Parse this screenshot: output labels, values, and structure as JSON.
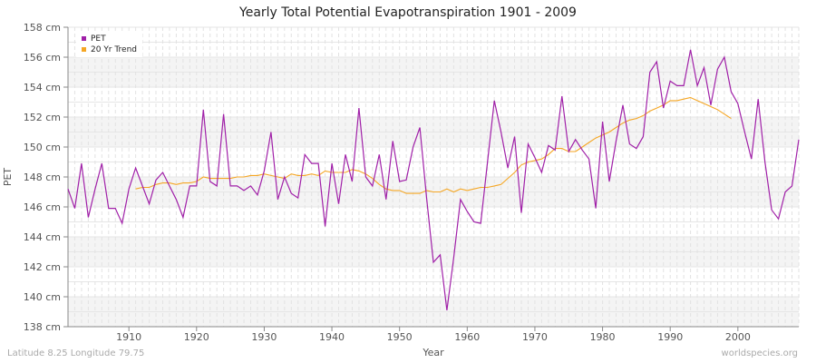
{
  "chart_data": {
    "type": "line",
    "title": "Yearly Total Potential Evapotranspiration 1901 - 2009",
    "xlabel": "Year",
    "ylabel": "PET",
    "xlim": [
      1901,
      2009
    ],
    "ylim": [
      138,
      158
    ],
    "y_unit": "cm",
    "x_ticks": [
      1910,
      1920,
      1930,
      1940,
      1950,
      1960,
      1970,
      1980,
      1990,
      2000
    ],
    "y_ticks": [
      138,
      140,
      142,
      144,
      146,
      148,
      150,
      152,
      154,
      156,
      158
    ],
    "y_tick_labels": [
      "138 cm",
      "140 cm",
      "142 cm",
      "144 cm",
      "146 cm",
      "148 cm",
      "150 cm",
      "152 cm",
      "154 cm",
      "156 cm",
      "158 cm"
    ],
    "grid": true,
    "legend_position": "top-left",
    "series": [
      {
        "name": "PET",
        "color": "#a020a8",
        "x_start": 1901,
        "values": [
          147.2,
          145.9,
          148.9,
          145.3,
          147.2,
          148.9,
          145.9,
          145.9,
          144.9,
          147.2,
          148.6,
          147.4,
          146.2,
          147.8,
          148.3,
          147.4,
          146.5,
          145.3,
          147.4,
          147.4,
          152.5,
          147.7,
          147.4,
          152.2,
          147.4,
          147.4,
          147.1,
          147.4,
          146.8,
          148.4,
          151.0,
          146.5,
          148.0,
          146.9,
          146.6,
          149.5,
          148.9,
          148.9,
          144.7,
          148.9,
          146.2,
          149.5,
          147.7,
          152.6,
          148.0,
          147.4,
          149.5,
          146.5,
          150.4,
          147.7,
          147.8,
          150.0,
          151.3,
          146.6,
          142.3,
          142.8,
          139.1,
          142.6,
          146.5,
          145.7,
          145.0,
          144.9,
          149.0,
          153.1,
          151.0,
          148.6,
          150.7,
          145.6,
          150.2,
          149.3,
          148.3,
          150.1,
          149.8,
          153.4,
          149.7,
          150.5,
          149.8,
          149.2,
          145.9,
          151.7,
          147.7,
          150.4,
          152.8,
          150.2,
          149.9,
          150.7,
          155.0,
          155.7,
          152.6,
          154.4,
          154.1,
          154.1,
          156.5,
          154.1,
          155.3,
          152.8,
          155.2,
          156.0,
          153.7,
          152.9,
          151.0,
          149.2,
          153.2,
          149.0,
          145.8,
          145.2,
          147.0,
          147.4,
          150.5
        ]
      },
      {
        "name": "20 Yr Trend",
        "color": "#f5a623",
        "x_start": 1911,
        "values": [
          147.2,
          147.3,
          147.3,
          147.5,
          147.6,
          147.6,
          147.5,
          147.6,
          147.6,
          147.7,
          148.0,
          147.9,
          147.9,
          147.9,
          147.9,
          148.0,
          148.0,
          148.1,
          148.1,
          148.2,
          148.1,
          148.0,
          147.9,
          148.2,
          148.1,
          148.1,
          148.2,
          148.1,
          148.4,
          148.3,
          148.3,
          148.3,
          148.5,
          148.4,
          148.2,
          147.9,
          147.5,
          147.2,
          147.1,
          147.1,
          146.9,
          146.9,
          146.9,
          147.1,
          147.0,
          147.0,
          147.2,
          147.0,
          147.2,
          147.1,
          147.2,
          147.3,
          147.3,
          147.4,
          147.5,
          147.9,
          148.3,
          148.8,
          149.0,
          149.1,
          149.2,
          149.5,
          149.9,
          149.9,
          149.7,
          149.7,
          150.0,
          150.3,
          150.6,
          150.8,
          151.0,
          151.3,
          151.6,
          151.8,
          151.9,
          152.1,
          152.4,
          152.6,
          152.8,
          153.1,
          153.1,
          153.2,
          153.3,
          153.1,
          152.9,
          152.7,
          152.5,
          152.2,
          151.9
        ]
      }
    ]
  },
  "footer": {
    "location": "Latitude 8.25 Longitude 79.75",
    "source": "worldspecies.org"
  }
}
